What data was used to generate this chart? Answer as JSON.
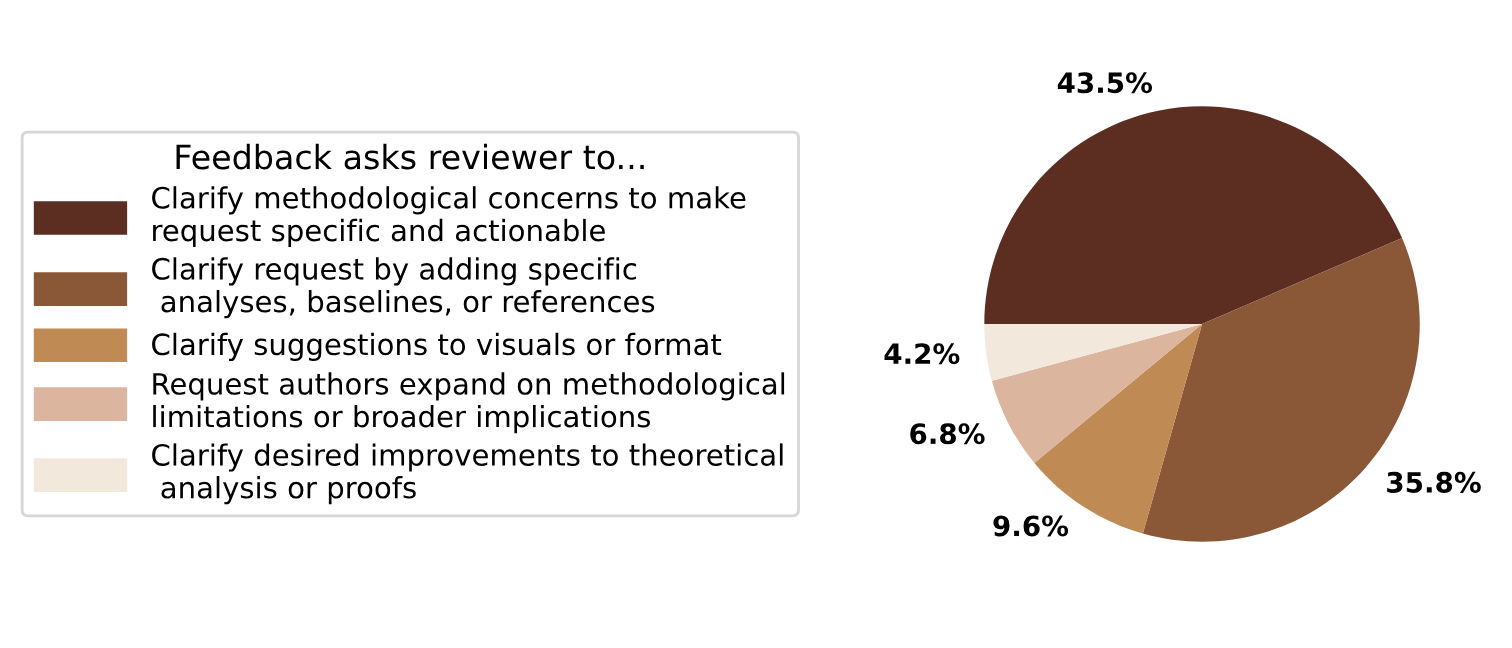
{
  "chart_data": {
    "type": "pie",
    "legend_title": "Feedback asks reviewer to...",
    "categories": [
      "Clarify methodological concerns to make\nrequest specific and actionable",
      "Clarify request by adding specific\n analyses, baselines, or references",
      "Clarify suggestions to visuals or format",
      "Request authors expand on methodological\nlimitations or broader implications",
      "Clarify desired improvements to theoretical\n analysis or proofs"
    ],
    "values": [
      43.5,
      35.8,
      9.6,
      6.8,
      4.2
    ],
    "value_labels": [
      "43.5%",
      "35.8%",
      "9.6%",
      "6.8%",
      "4.2%"
    ],
    "colors": [
      "#5c2e22",
      "#8a5737",
      "#c08a55",
      "#dbb59e",
      "#f3e8dc"
    ],
    "legend": "left"
  }
}
